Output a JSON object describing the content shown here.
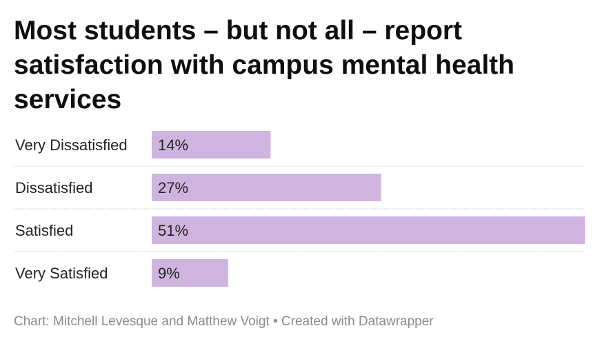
{
  "title": "Most students – but not all – report satisfaction with campus mental health services",
  "footer": "Chart: Mitchell Levesque and Matthew Voigt • Created with Datawrapper",
  "colors": {
    "bar": "#cfb4e0",
    "divider": "#c9c9c9"
  },
  "chart_data": {
    "type": "bar",
    "orientation": "horizontal",
    "title": "Most students – but not all – report satisfaction with campus mental health services",
    "categories": [
      "Very Dissatisfied",
      "Dissatisfied",
      "Satisfied",
      "Very Satisfied"
    ],
    "values": [
      14,
      27,
      51,
      9
    ],
    "value_labels": [
      "14%",
      "27%",
      "51%",
      "9%"
    ],
    "xlim": [
      0,
      51
    ],
    "grid": false,
    "legend": "none"
  }
}
